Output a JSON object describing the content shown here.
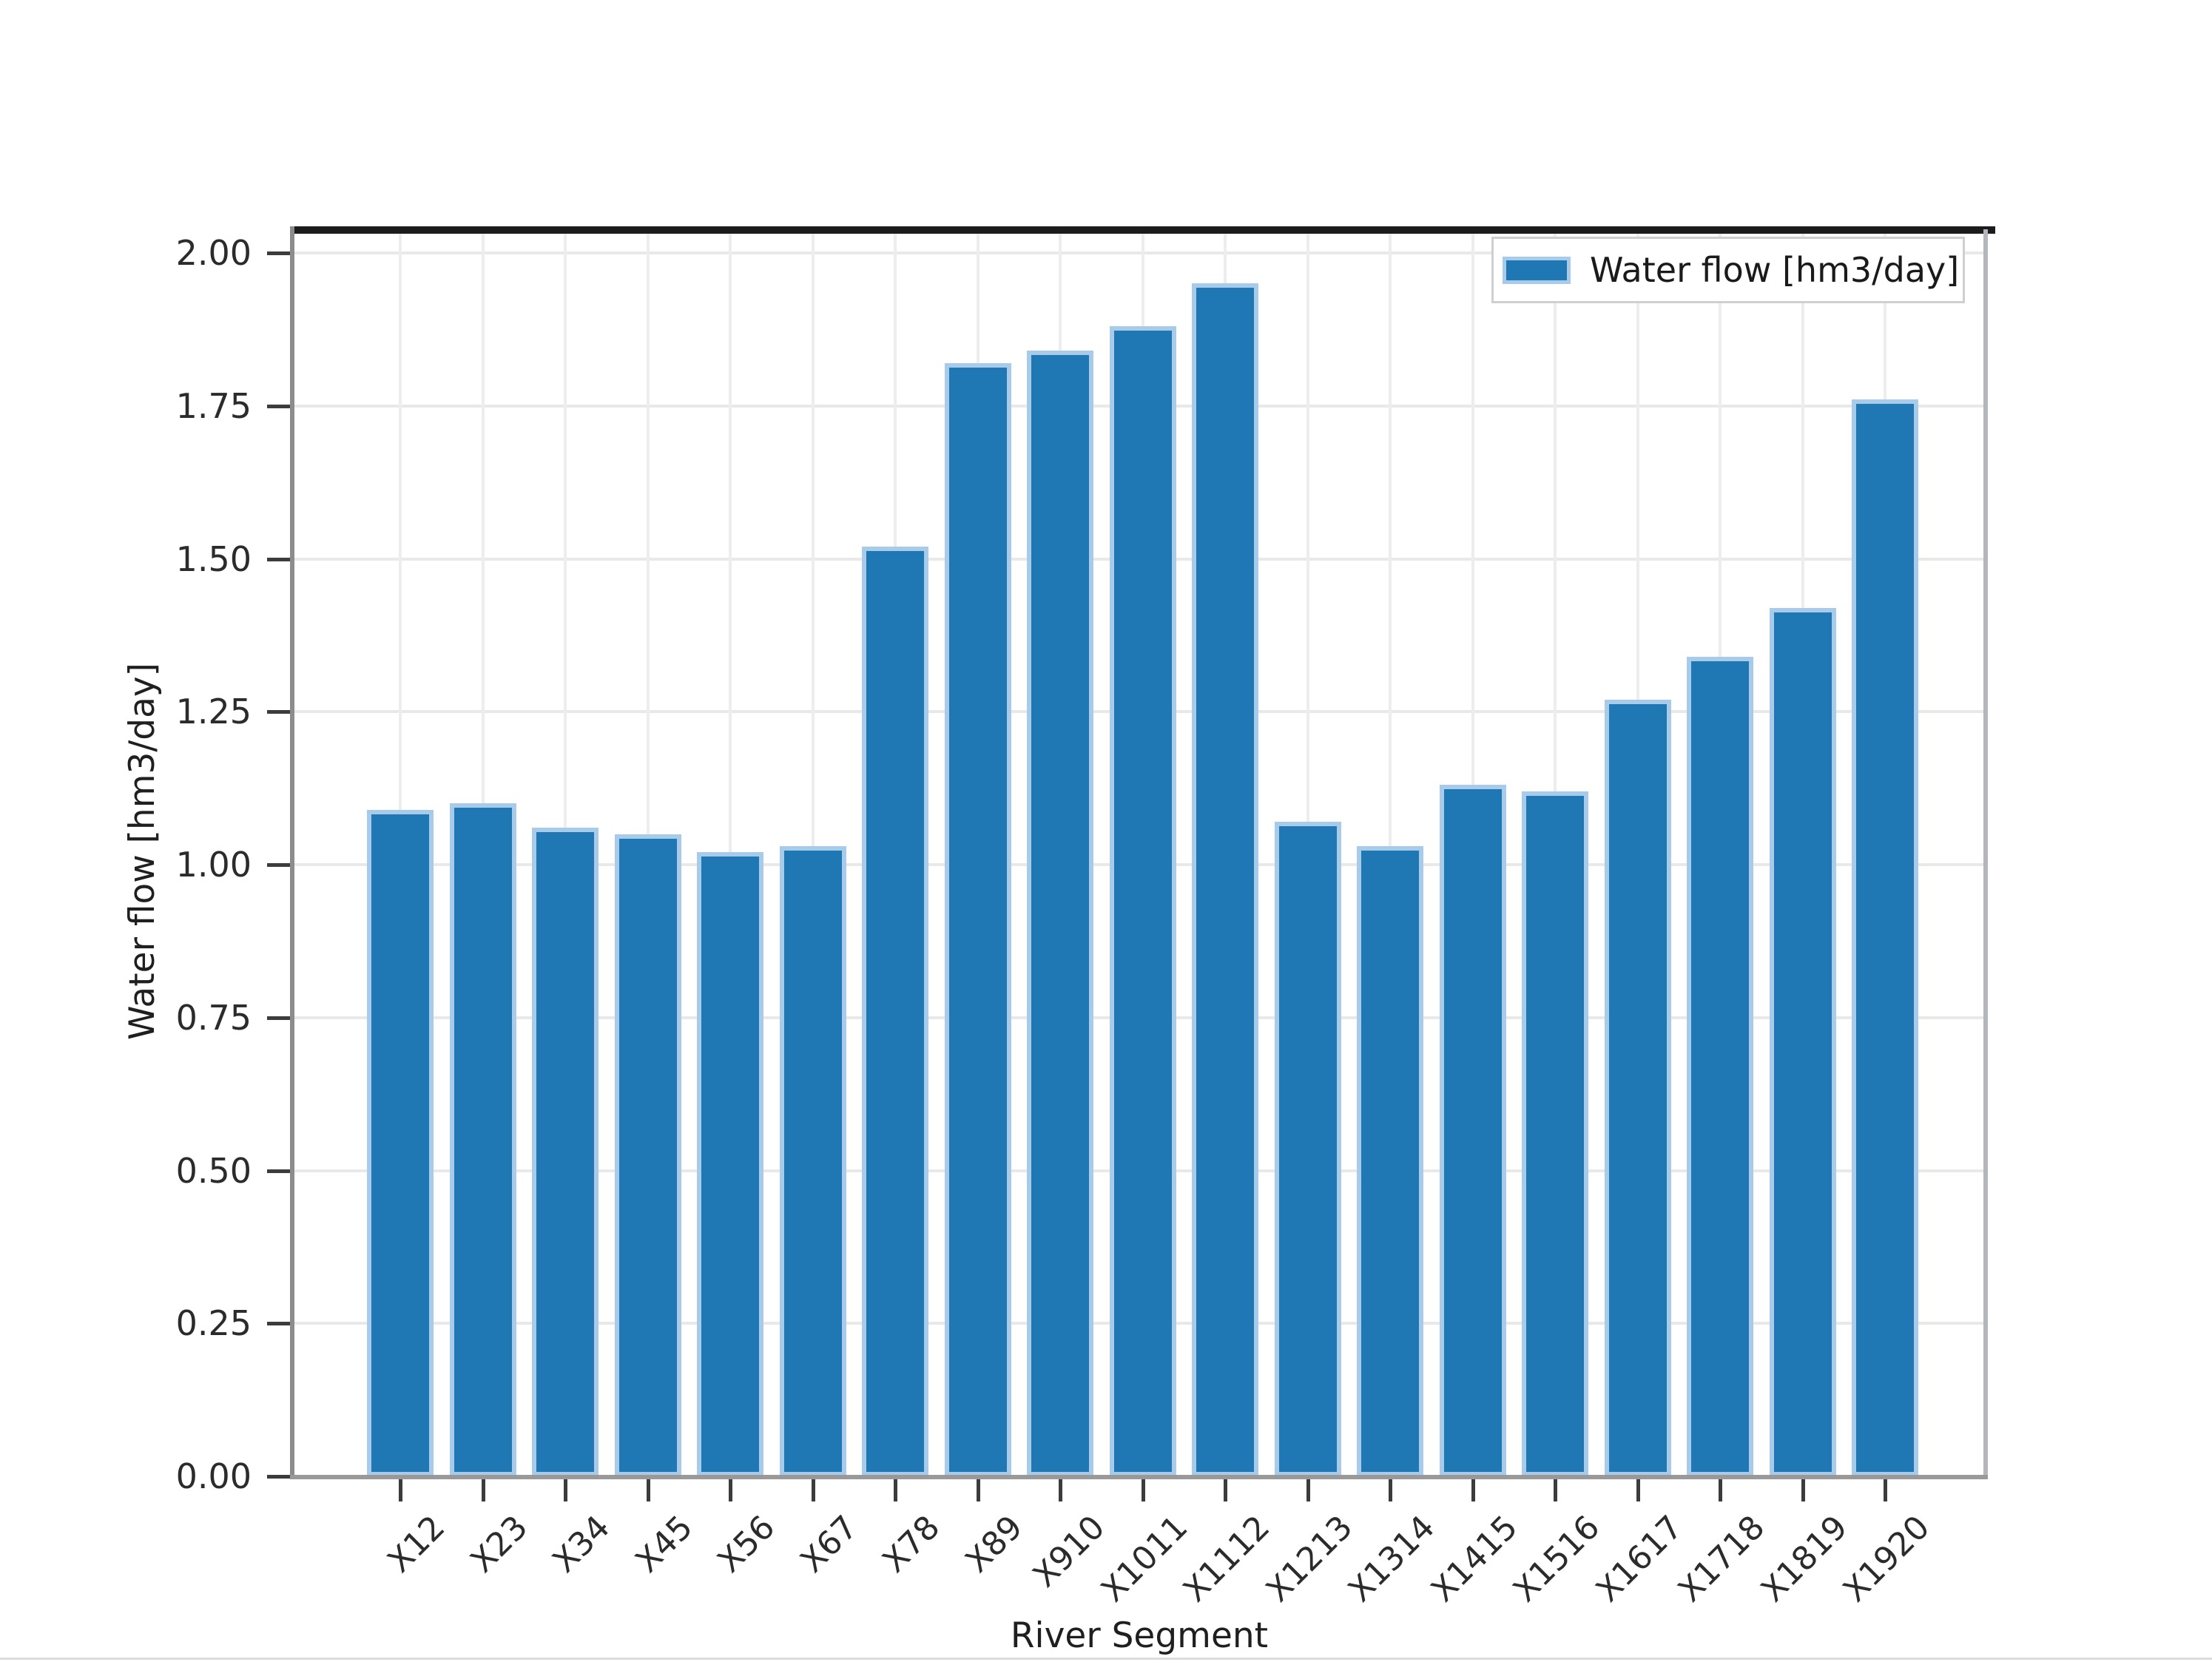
{
  "figure": {
    "background": "#ffffff"
  },
  "chart_data": {
    "type": "bar",
    "title": "",
    "xlabel": "River Segment",
    "ylabel": "Water flow [hm3/day]",
    "legend": {
      "position": "upper right",
      "entries": [
        {
          "label": "Water flow [hm3/day]",
          "color": "#1f77b4",
          "edge_color": "#a7cbe8"
        }
      ]
    },
    "categories": [
      "X12",
      "X23",
      "X34",
      "X45",
      "X56",
      "X67",
      "X78",
      "X89",
      "X910",
      "X1011",
      "X1112",
      "X1213",
      "X1314",
      "X1415",
      "X1516",
      "X1617",
      "X1718",
      "X1819",
      "X1920"
    ],
    "values": [
      1.09,
      1.1,
      1.06,
      1.05,
      1.02,
      1.03,
      1.52,
      1.82,
      1.84,
      1.88,
      1.95,
      1.07,
      1.03,
      1.13,
      1.12,
      1.27,
      1.34,
      1.42,
      1.76
    ],
    "ytick_labels": [
      "0.00",
      "0.25",
      "0.50",
      "0.75",
      "1.00",
      "1.25",
      "1.50",
      "1.75",
      "2.00"
    ],
    "ytick_values": [
      0.0,
      0.25,
      0.5,
      0.75,
      1.0,
      1.25,
      1.5,
      1.75,
      2.0
    ],
    "ylim": [
      0,
      2.04
    ],
    "grid": true,
    "grid_color": "#ebebeb",
    "bar_color": "#1f77b4",
    "bar_edge_color": "#a7cbe8",
    "xtick_label_rotation_deg": 45
  }
}
